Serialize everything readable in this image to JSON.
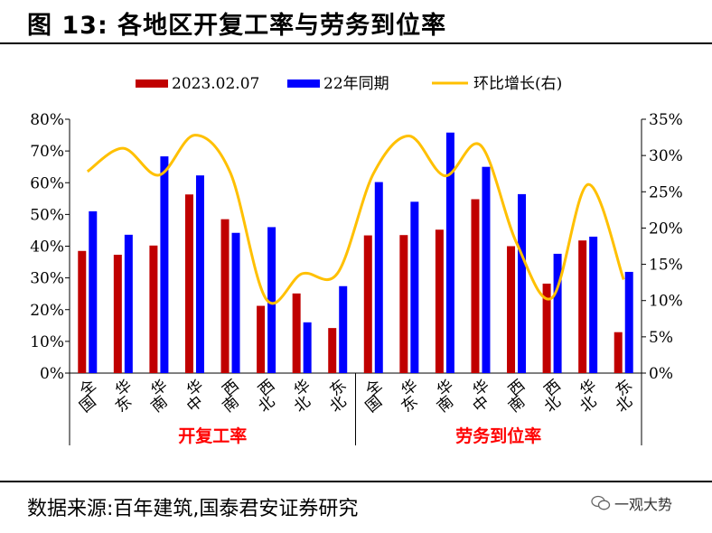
{
  "header": {
    "title": "图 13:  各地区开复工率与劳务到位率"
  },
  "footer": {
    "source": "数据来源:百年建筑,国泰君安证券研究",
    "watermark": "一观大势"
  },
  "colors": {
    "series1": "#c00000",
    "series2": "#0000ff",
    "series3": "#ffc000"
  },
  "chart_data": {
    "type": "bar",
    "categories": [
      "全国",
      "华东",
      "华南",
      "华中",
      "西南",
      "西北",
      "华北",
      "东北",
      "全国",
      "华东",
      "华南",
      "华中",
      "西南",
      "西北",
      "华北",
      "东北"
    ],
    "groups": [
      {
        "label": "开复工率",
        "range": [
          0,
          7
        ]
      },
      {
        "label": "劳务到位率",
        "range": [
          8,
          15
        ]
      }
    ],
    "series": [
      {
        "name": "2023.02.07",
        "kind": "bar",
        "axis": "left",
        "values": [
          38.5,
          37.3,
          40.2,
          56.3,
          48.5,
          21.2,
          25.1,
          14.2,
          43.4,
          43.5,
          45.2,
          54.8,
          40.0,
          28.2,
          41.8,
          12.9
        ]
      },
      {
        "name": "22年同期",
        "kind": "bar",
        "axis": "left",
        "values": [
          51.0,
          43.6,
          68.3,
          62.3,
          44.2,
          46.0,
          16.0,
          27.4,
          60.2,
          54.0,
          75.8,
          65.0,
          56.4,
          37.6,
          43.0,
          31.9
        ]
      },
      {
        "name": "环比增长(右)",
        "kind": "line",
        "axis": "right",
        "values": [
          27.8,
          31.0,
          27.3,
          32.8,
          27.6,
          10.2,
          13.7,
          13.8,
          27.5,
          32.7,
          27.2,
          31.4,
          18.0,
          10.4,
          26.0,
          12.9
        ]
      }
    ],
    "y_left": {
      "range": [
        0,
        80
      ],
      "ticks": [
        "0%",
        "10%",
        "20%",
        "30%",
        "40%",
        "50%",
        "60%",
        "70%",
        "80%"
      ]
    },
    "y_right": {
      "range": [
        0,
        35
      ],
      "ticks": [
        "0%",
        "5%",
        "10%",
        "15%",
        "20%",
        "25%",
        "30%",
        "35%"
      ]
    },
    "legend": {
      "position": "top",
      "entries": [
        "2023.02.07",
        "22年同期",
        "环比增长(右)"
      ]
    },
    "grid": false
  }
}
